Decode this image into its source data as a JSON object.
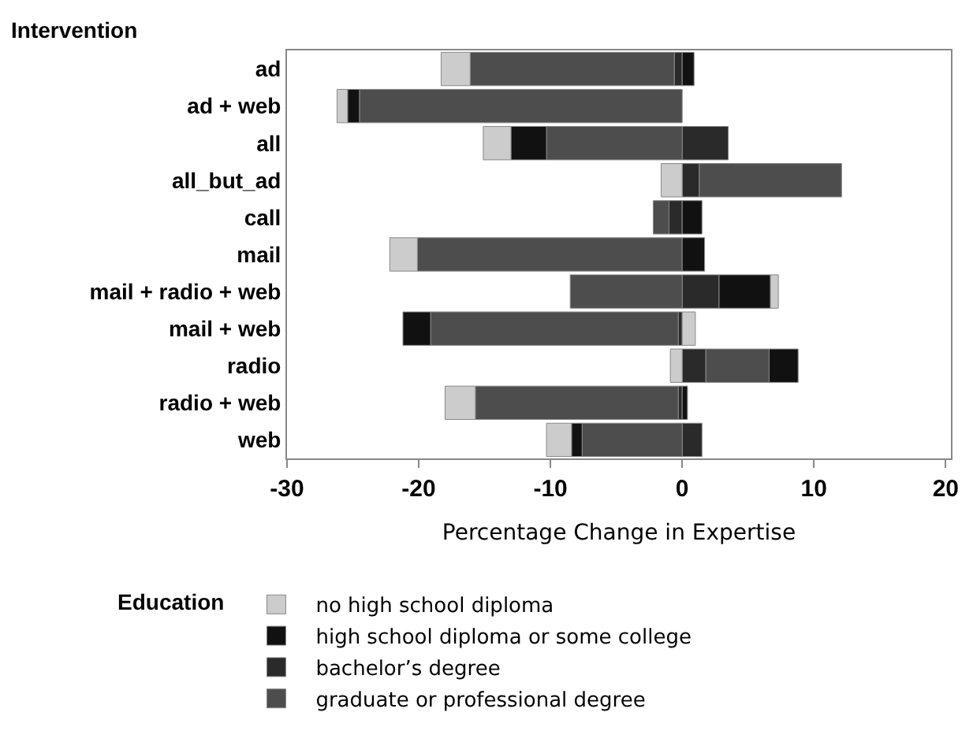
{
  "chart_data": {
    "type": "bar",
    "orientation": "horizontal",
    "stacked": true,
    "ylabel": "Intervention",
    "xlabel": "Percentage Change in Expertise",
    "legend_title": "Education",
    "legend": "bottom",
    "grid": false,
    "categories": [
      "ad",
      "ad + web",
      "all",
      "all_but_ad",
      "call",
      "mail",
      "mail + radio + web",
      "mail + web",
      "radio",
      "radio + web",
      "web"
    ],
    "xlim": [
      -30,
      20.4
    ],
    "xticks": [
      -30,
      -20,
      -10,
      0,
      10,
      20
    ],
    "series": [
      {
        "name": "bachelor’s degree",
        "color": "#2a2a2a",
        "values": [
          -0.6,
          null,
          3.5,
          1.3,
          -1.0,
          null,
          2.8,
          -0.3,
          1.8,
          -0.3,
          1.5
        ]
      },
      {
        "name": "graduate or professional degree",
        "color": "#4d4d4d",
        "values": [
          -15.5,
          -24.5,
          -10.3,
          10.8,
          -1.2,
          -20.1,
          -8.5,
          -18.8,
          4.8,
          -15.4,
          -7.6
        ]
      },
      {
        "name": "high school diploma or some college",
        "color": "#111111",
        "values": [
          0.9,
          -0.9,
          -2.7,
          null,
          1.5,
          1.7,
          3.9,
          -2.1,
          2.2,
          0.4,
          -0.8
        ]
      },
      {
        "name": "no high school diploma",
        "color": "#cccccc",
        "values": [
          -2.2,
          -0.8,
          -2.1,
          -1.6,
          null,
          -2.1,
          0.6,
          1.0,
          -0.9,
          -2.3,
          -1.9
        ]
      }
    ]
  }
}
